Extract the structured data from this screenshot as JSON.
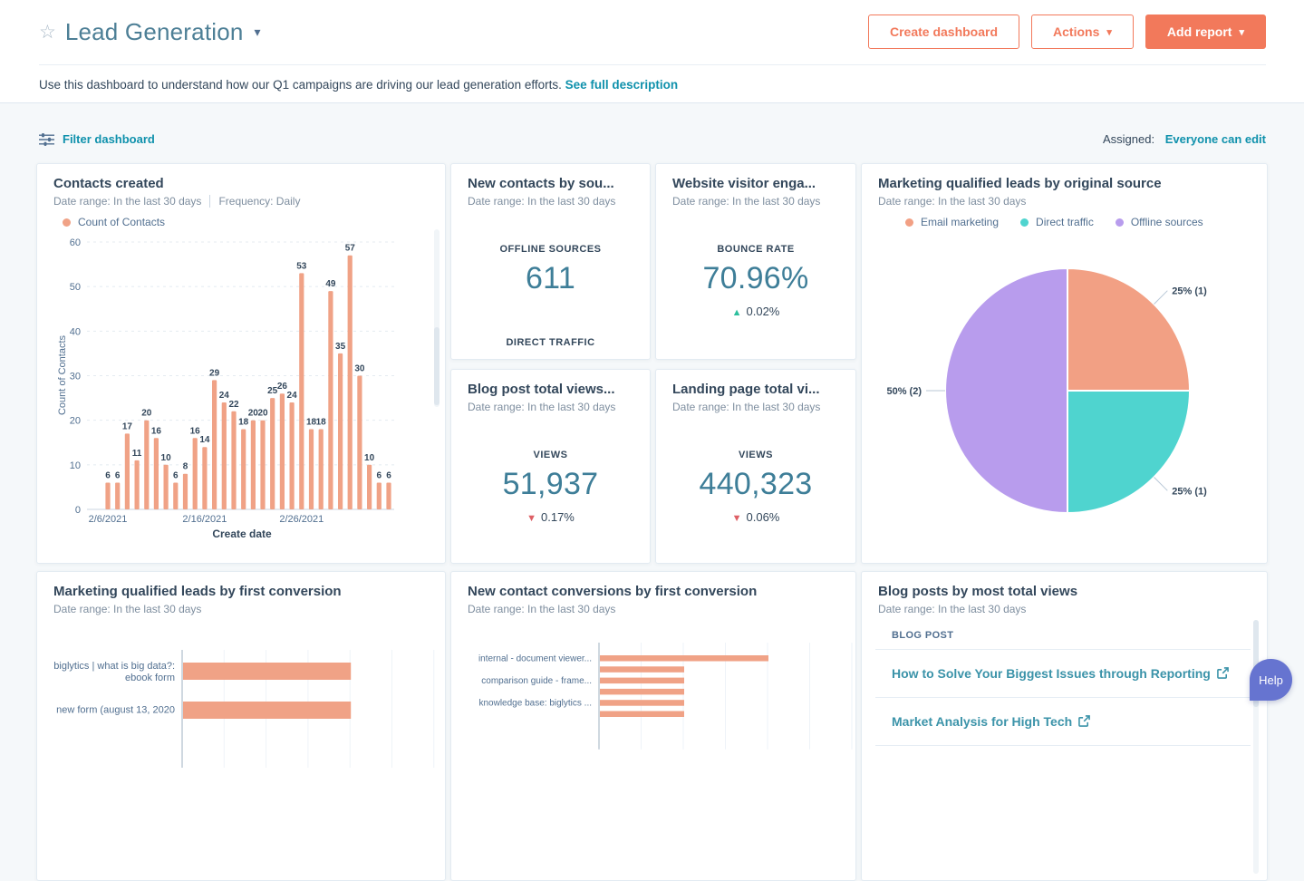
{
  "icons": {
    "star": "☆",
    "caret_down": "▾",
    "trend_up": "▲",
    "trend_down": "▼"
  },
  "header": {
    "title": "Lead Generation",
    "buttons": {
      "create_dashboard": "Create dashboard",
      "actions": "Actions",
      "add_report": "Add report"
    },
    "description": "Use this dashboard to understand how our Q1 campaigns are driving our lead generation efforts.",
    "see_full_description": "See full description"
  },
  "toolbar": {
    "filter": "Filter dashboard",
    "assigned_label": "Assigned:",
    "assigned_value": "Everyone can edit"
  },
  "help_button": "Help",
  "cards": {
    "contacts_created": {
      "title": "Contacts created",
      "date_range": "Date range: In the last 30 days",
      "frequency": "Frequency: Daily",
      "legend": "Count of Contacts",
      "legend_color": "#f0a286"
    },
    "new_contacts_by_source": {
      "title": "New contacts by sou...",
      "date_range": "Date range: In the last 30 days",
      "stat_label": "OFFLINE SOURCES",
      "stat_value": "611",
      "secondary_label": "DIRECT TRAFFIC"
    },
    "website_visitor": {
      "title": "Website visitor enga...",
      "date_range": "Date range: In the last 30 days",
      "stat_label": "BOUNCE RATE",
      "stat_value": "70.96%",
      "delta": "0.02%",
      "trend": "up"
    },
    "blog_post_views": {
      "title": "Blog post total views...",
      "date_range": "Date range: In the last 30 days",
      "stat_label": "VIEWS",
      "stat_value": "51,937",
      "delta": "0.17%",
      "trend": "down"
    },
    "landing_page_views": {
      "title": "Landing page total vi...",
      "date_range": "Date range: In the last 30 days",
      "stat_label": "VIEWS",
      "stat_value": "440,323",
      "delta": "0.06%",
      "trend": "down"
    },
    "mql_by_source": {
      "title": "Marketing qualified leads by original source",
      "date_range": "Date range: In the last 30 days"
    },
    "mql_by_first_conversion": {
      "title": "Marketing qualified leads by first conversion",
      "date_range": "Date range: In the last 30 days"
    },
    "conversions_by_first_conversion": {
      "title": "New contact conversions by first conversion",
      "date_range": "Date range: In the last 30 days"
    },
    "blog_posts_table": {
      "title": "Blog posts by most total views",
      "date_range": "Date range: In the last 30 days",
      "column_header": "BLOG POST",
      "rows": [
        {
          "text": "How to Solve Your Biggest Issues through Reporting",
          "external_link": true
        },
        {
          "text": "Market Analysis for High Tech",
          "external_link": true
        }
      ]
    }
  },
  "chart_data": [
    {
      "id": "contacts-created",
      "type": "bar",
      "title": "Contacts created",
      "xlabel": "Create date",
      "ylabel": "Count of Contacts",
      "ylim": [
        0,
        60
      ],
      "y_tick_step": 10,
      "grid": "horizontal-dashed",
      "legend_position": "top",
      "categories": [
        "2/6/2021",
        "2/7/2021",
        "2/8/2021",
        "2/9/2021",
        "2/10/2021",
        "2/11/2021",
        "2/12/2021",
        "2/13/2021",
        "2/14/2021",
        "2/15/2021",
        "2/16/2021",
        "2/17/2021",
        "2/18/2021",
        "2/19/2021",
        "2/20/2021",
        "2/21/2021",
        "2/22/2021",
        "2/23/2021",
        "2/24/2021",
        "2/25/2021",
        "2/26/2021",
        "2/27/2021",
        "2/28/2021",
        "3/1/2021",
        "3/2/2021",
        "3/3/2021",
        "3/4/2021",
        "3/5/2021",
        "3/6/2021",
        "3/7/2021"
      ],
      "x_tick_indices": [
        0,
        10,
        20
      ],
      "x_tick_labels": [
        "2/6/2021",
        "2/16/2021",
        "2/26/2021"
      ],
      "series": [
        {
          "name": "Count of Contacts",
          "color": "#f0a286",
          "values": [
            6,
            6,
            17,
            11,
            20,
            16,
            10,
            6,
            8,
            16,
            14,
            29,
            24,
            22,
            18,
            20,
            20,
            25,
            26,
            24,
            53,
            18,
            18,
            49,
            35,
            57,
            30,
            10,
            6,
            6
          ]
        }
      ]
    },
    {
      "id": "mql-by-original-source",
      "type": "pie",
      "title": "Marketing qualified leads by original source",
      "legend_position": "top",
      "slices": [
        {
          "label": "Email marketing",
          "pct": 25,
          "count": 1,
          "callout": "25% (1)",
          "color": "#f2a084"
        },
        {
          "label": "Direct traffic",
          "pct": 25,
          "count": 1,
          "callout": "25% (1)",
          "color": "#4fd4cf"
        },
        {
          "label": "Offline sources",
          "pct": 50,
          "count": 2,
          "callout": "50% (2)",
          "color": "#b89ced"
        }
      ]
    },
    {
      "id": "mql-by-first-conversion",
      "type": "bar-horizontal",
      "title": "Marketing qualified leads by first conversion",
      "xlim": [
        0,
        6
      ],
      "color": "#f0a286",
      "bars": [
        {
          "label": "biglytics | what is big data?: ebook form",
          "label_lines": [
            "biglytics | what is big data?:",
            "ebook form"
          ],
          "value": 4
        },
        {
          "label": "new form (august 13, 2020",
          "label_lines": [
            "new form (august 13, 2020"
          ],
          "value": 4
        }
      ]
    },
    {
      "id": "new-contact-conversions",
      "type": "bar-horizontal",
      "title": "New contact conversions by first conversion",
      "xlim": [
        0,
        6
      ],
      "color": "#f0a286",
      "bars": [
        {
          "label": "internal - document viewer...",
          "value": 4
        },
        {
          "label": "",
          "value": 2
        },
        {
          "label": "comparison guide - frame...",
          "value": 2
        },
        {
          "label": "",
          "value": 2
        },
        {
          "label": "knowledge base: biglytics ...",
          "value": 2
        },
        {
          "label": "",
          "value": 2
        }
      ]
    },
    {
      "id": "blog-posts-table",
      "type": "table",
      "title": "Blog posts by most total views",
      "columns": [
        "BLOG POST"
      ],
      "rows": [
        "How to Solve Your Biggest Issues through Reporting",
        "Market Analysis for High Tech"
      ]
    }
  ]
}
